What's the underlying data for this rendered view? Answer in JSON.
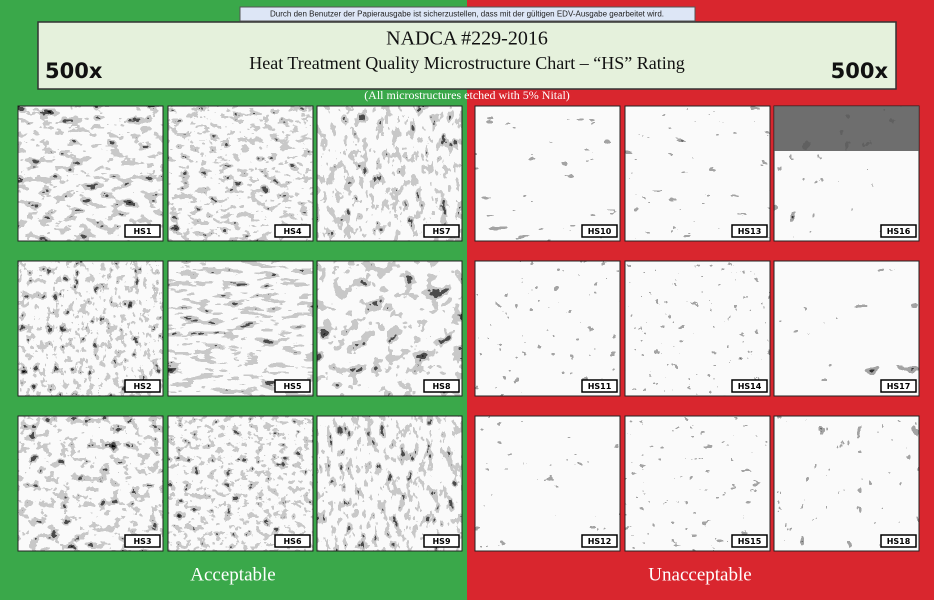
{
  "notice": "Durch den Benutzer der Papierausgabe ist sicherzustellen, dass mit der gültigen EDV-Ausgabe gearbeitet wird.",
  "header": {
    "title": "NADCA #229-2016",
    "subtitle": "Heat Treatment Quality Microstructure Chart – “HS” Rating",
    "magnification_left": "500x",
    "magnification_right": "500x",
    "note": "(All microstructures etched with 5% Nital)"
  },
  "panels": [
    {
      "label": "Acceptable",
      "rows": [
        [
          "HS1",
          "HS4",
          "HS7"
        ],
        [
          "HS2",
          "HS5",
          "HS8"
        ],
        [
          "HS3",
          "HS6",
          "HS9"
        ]
      ]
    },
    {
      "label": "Unacceptable",
      "rows": [
        [
          "HS10",
          "HS13",
          "HS16"
        ],
        [
          "HS11",
          "HS14",
          "HS17"
        ],
        [
          "HS12",
          "HS15",
          "HS18"
        ]
      ]
    }
  ]
}
